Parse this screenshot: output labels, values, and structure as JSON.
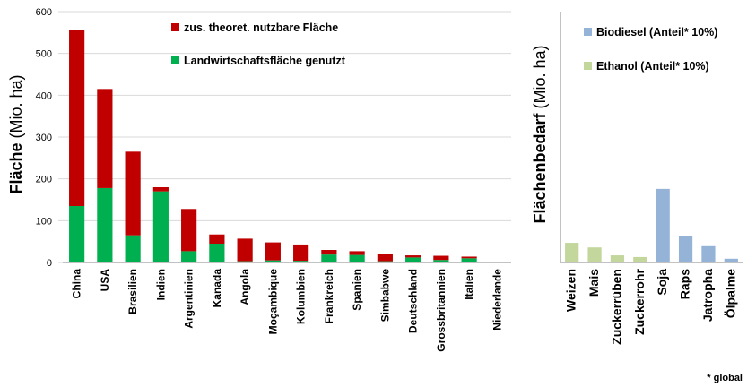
{
  "chart_data": [
    {
      "type": "bar",
      "stacked": true,
      "y_label_bold": "Fläche",
      "y_label_unit": "(Mio. ha)",
      "categories": [
        "China",
        "USA",
        "Brasilien",
        "Indien",
        "Argentinien",
        "Kanada",
        "Angola",
        "Moçambique",
        "Kolumbien",
        "Frankreich",
        "Spanien",
        "Simbabwe",
        "Deutschland",
        "Grossbritannien",
        "Italien",
        "Niederlande"
      ],
      "series": [
        {
          "name": "Landwirtschaftsfläche genutzt",
          "color": "#00b050",
          "values": [
            135,
            178,
            65,
            170,
            27,
            45,
            3,
            5,
            4,
            19,
            18,
            3,
            12,
            6,
            10,
            2
          ]
        },
        {
          "name": "zus. theoret. nutzbare Fläche",
          "color": "#c00000",
          "values": [
            420,
            237,
            200,
            10,
            101,
            22,
            54,
            43,
            39,
            11,
            9,
            17,
            5,
            10,
            4,
            0
          ]
        }
      ],
      "ylim": [
        0,
        600
      ],
      "yticks": [
        0,
        100,
        200,
        300,
        400,
        500,
        600
      ],
      "grid": true
    },
    {
      "type": "bar",
      "y_label_bold": "Flächenbedarf",
      "y_label_unit": "(Mio. ha)",
      "categories": [
        "Weizen",
        "Mais",
        "Zuckerrüben",
        "Zuckerrohr",
        "Soja",
        "Raps",
        "Jatropha",
        "Ölpalme"
      ],
      "series": [
        {
          "name": "Biodiesel (Anteil* 10%)",
          "color": "#95b3d7",
          "values": [
            null,
            null,
            null,
            null,
            176,
            64,
            39,
            9
          ]
        },
        {
          "name": "Ethanol (Anteil* 10%)",
          "color": "#c3d69b",
          "values": [
            47,
            36,
            17,
            13,
            null,
            null,
            null,
            null
          ]
        }
      ],
      "ylim": [
        0,
        600
      ],
      "footnote": "* global"
    }
  ]
}
